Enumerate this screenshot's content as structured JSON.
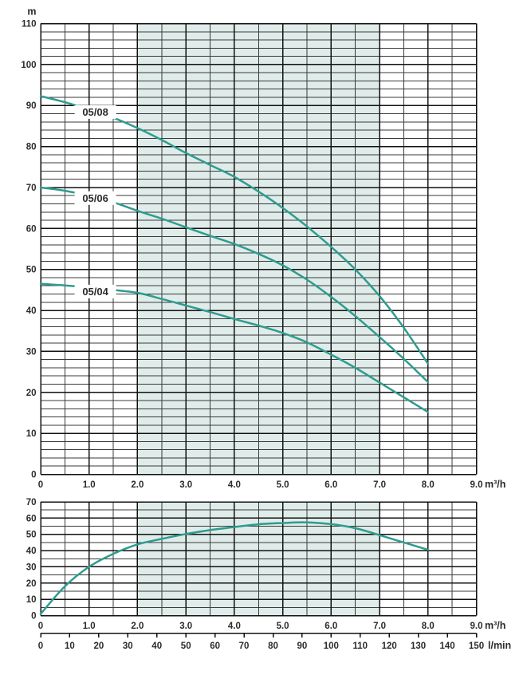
{
  "colors": {
    "background": "#ffffff",
    "curve": "#2E9C8F",
    "band": "#DFECE9",
    "grid_minor": "#3a3a3a",
    "grid_major": "#111111",
    "text": "#2b2b2b",
    "label_bg": "#ffffff"
  },
  "chart_data": [
    {
      "id": "head-chart",
      "type": "line",
      "title": "",
      "ylabel": "m",
      "xlabel": "m³/h",
      "xlim": [
        0,
        9
      ],
      "ylim": [
        0,
        110
      ],
      "x_major_step": 1,
      "x_minor_step": 0.5,
      "y_major_step": 10,
      "y_minor_step": 2,
      "grid": true,
      "x_tick_labels": [
        "0",
        "1.0",
        "2.0",
        "3.0",
        "4.0",
        "5.0",
        "6.0",
        "7.0",
        "8.0",
        "9.0"
      ],
      "y_tick_labels": [
        "0",
        "10",
        "20",
        "30",
        "40",
        "50",
        "60",
        "70",
        "80",
        "90",
        "100",
        "110"
      ],
      "recommended_range_x": [
        2.0,
        7.0
      ],
      "series": [
        {
          "name": "05/08",
          "label_x": 1.13,
          "label_y": 88.4,
          "points": [
            [
              0,
              92.3
            ],
            [
              0.5,
              90.8
            ],
            [
              1,
              89.0
            ],
            [
              1.5,
              87.0
            ],
            [
              2,
              84.5
            ],
            [
              2.5,
              81.6
            ],
            [
              3,
              78.4
            ],
            [
              3.5,
              75.5
            ],
            [
              4,
              72.6
            ],
            [
              4.5,
              69.0
            ],
            [
              5,
              65.0
            ],
            [
              5.5,
              60.5
            ],
            [
              6,
              55.5
            ],
            [
              6.5,
              50.0
            ],
            [
              7,
              43.5
            ],
            [
              7.5,
              35.8
            ],
            [
              8,
              27.0
            ]
          ]
        },
        {
          "name": "05/06",
          "label_x": 1.13,
          "label_y": 67.4,
          "points": [
            [
              0,
              70.0
            ],
            [
              0.5,
              69.2
            ],
            [
              1,
              68.0
            ],
            [
              1.5,
              66.4
            ],
            [
              2,
              64.3
            ],
            [
              2.5,
              62.4
            ],
            [
              3,
              60.3
            ],
            [
              3.5,
              58.2
            ],
            [
              4,
              56.2
            ],
            [
              4.5,
              53.8
            ],
            [
              5,
              51.0
            ],
            [
              5.5,
              47.5
            ],
            [
              6,
              43.3
            ],
            [
              6.5,
              38.6
            ],
            [
              7,
              33.5
            ],
            [
              7.5,
              28.2
            ],
            [
              8,
              22.5
            ]
          ]
        },
        {
          "name": "05/04",
          "label_x": 1.13,
          "label_y": 44.6,
          "points": [
            [
              0,
              46.5
            ],
            [
              0.5,
              46.1
            ],
            [
              1,
              45.6
            ],
            [
              1.5,
              45.0
            ],
            [
              2,
              44.3
            ],
            [
              2.5,
              42.8
            ],
            [
              3,
              41.2
            ],
            [
              3.5,
              39.6
            ],
            [
              4,
              37.9
            ],
            [
              4.5,
              36.3
            ],
            [
              5,
              34.5
            ],
            [
              5.5,
              32.2
            ],
            [
              6,
              29.2
            ],
            [
              6.5,
              26.0
            ],
            [
              7,
              22.4
            ],
            [
              7.5,
              18.8
            ],
            [
              8,
              15.2
            ]
          ]
        }
      ]
    },
    {
      "id": "power-chart",
      "type": "line",
      "title": "",
      "ylabel": "",
      "xlabel": "m³/h",
      "xlim": [
        0,
        9
      ],
      "ylim": [
        0,
        70
      ],
      "x_major_step": 1,
      "x_minor_step": 0.5,
      "y_major_step": 10,
      "y_minor_step": 5,
      "grid": true,
      "x_tick_labels": [
        "0",
        "1.0",
        "2.0",
        "3.0",
        "4.0",
        "5.0",
        "6.0",
        "7.0",
        "8.0",
        "9.0"
      ],
      "y_tick_labels": [
        "0",
        "10",
        "20",
        "30",
        "40",
        "50",
        "60",
        "70"
      ],
      "recommended_range_x": [
        2.0,
        7.0
      ],
      "series": [
        {
          "name": "",
          "points": [
            [
              0,
              1.0
            ],
            [
              0.5,
              18.0
            ],
            [
              1,
              30.0
            ],
            [
              1.5,
              38.0
            ],
            [
              2,
              43.8
            ],
            [
              2.5,
              47.2
            ],
            [
              3,
              50.2
            ],
            [
              3.5,
              52.6
            ],
            [
              4,
              54.5
            ],
            [
              4.5,
              56.2
            ],
            [
              5,
              57.0
            ],
            [
              5.5,
              57.4
            ],
            [
              6,
              56.3
            ],
            [
              6.5,
              53.8
            ],
            [
              7,
              49.5
            ],
            [
              7.5,
              45.0
            ],
            [
              8,
              40.5
            ]
          ]
        }
      ],
      "secondary_x_axis": {
        "unit": "l/min",
        "min": 0,
        "max": 150,
        "step": 10,
        "tick_labels": [
          "0",
          "10",
          "20",
          "30",
          "40",
          "50",
          "60",
          "70",
          "80",
          "90",
          "100",
          "110",
          "120",
          "130",
          "140",
          "150"
        ]
      }
    }
  ]
}
